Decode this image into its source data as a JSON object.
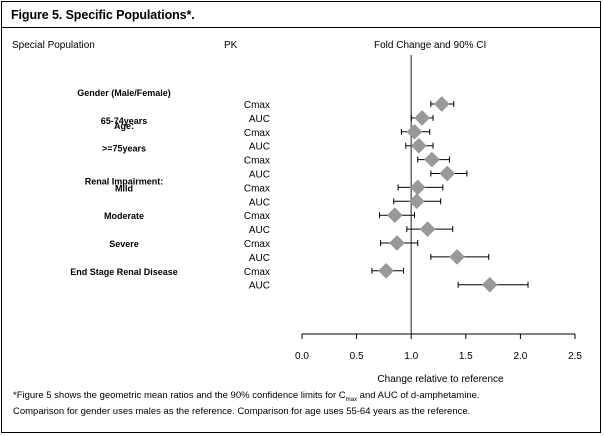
{
  "figure": {
    "title": "Figure 5. Specific Populations*.",
    "col_population": "Special Population",
    "col_pk": "PK",
    "col_plot": "Fold Change and 90% CI",
    "footnote_pre": "*Figure 5 shows the geometric mean ratios and the 90% confidence limits for C",
    "footnote_sub": "max",
    "footnote_post": " and AUC of d-amphetamine.",
    "footnote_line2": "Comparison for gender uses males as the reference. Comparison for age uses 55-64 years as the reference."
  },
  "colors": {
    "marker": "#999999",
    "line": "#000000",
    "reference": "#555555"
  },
  "chart_data": {
    "type": "forest",
    "xlabel": "Change relative to reference",
    "xlim": [
      0,
      2.5
    ],
    "xticks": [
      0.0,
      0.5,
      1.0,
      1.5,
      2.0,
      2.5
    ],
    "xtick_labels": [
      "0.0",
      "0.5",
      "1.0",
      "1.5",
      "2.0",
      "2.5"
    ],
    "reference_line": 1.0,
    "group_labels": [
      {
        "text": "Gender (Male/Female)",
        "row": 0,
        "dy": -12
      },
      {
        "text": "Age:",
        "row": 1.5,
        "dy": 0
      },
      {
        "text": "65-74years",
        "row": 2,
        "dy": -12
      },
      {
        "text": ">=75years",
        "row": 4,
        "dy": -12
      },
      {
        "text": "Renal Impairment:",
        "row": 5.5,
        "dy": 0
      },
      {
        "text": "Mild",
        "row": 6,
        "dy": 0
      },
      {
        "text": "Moderate",
        "row": 8,
        "dy": 0
      },
      {
        "text": "Severe",
        "row": 10,
        "dy": 0
      },
      {
        "text": "End Stage Renal Disease",
        "row": 12,
        "dy": 0
      }
    ],
    "rows": [
      {
        "pk": "Cmax",
        "estimate": 1.28,
        "lower": 1.18,
        "upper": 1.39
      },
      {
        "pk": "AUC",
        "estimate": 1.1,
        "lower": 1.0,
        "upper": 1.2
      },
      {
        "pk": "Cmax",
        "estimate": 1.03,
        "lower": 0.91,
        "upper": 1.17
      },
      {
        "pk": "AUC",
        "estimate": 1.07,
        "lower": 0.95,
        "upper": 1.2
      },
      {
        "pk": "Cmax",
        "estimate": 1.19,
        "lower": 1.06,
        "upper": 1.35
      },
      {
        "pk": "AUC",
        "estimate": 1.33,
        "lower": 1.18,
        "upper": 1.51
      },
      {
        "pk": "Cmax",
        "estimate": 1.06,
        "lower": 0.88,
        "upper": 1.29
      },
      {
        "pk": "AUC",
        "estimate": 1.05,
        "lower": 0.84,
        "upper": 1.27
      },
      {
        "pk": "Cmax",
        "estimate": 0.85,
        "lower": 0.71,
        "upper": 1.03
      },
      {
        "pk": "AUC",
        "estimate": 1.15,
        "lower": 0.96,
        "upper": 1.38
      },
      {
        "pk": "Cmax",
        "estimate": 0.87,
        "lower": 0.72,
        "upper": 1.06
      },
      {
        "pk": "AUC",
        "estimate": 1.42,
        "lower": 1.18,
        "upper": 1.71
      },
      {
        "pk": "Cmax",
        "estimate": 0.77,
        "lower": 0.64,
        "upper": 0.93
      },
      {
        "pk": "AUC",
        "estimate": 1.72,
        "lower": 1.43,
        "upper": 2.07
      }
    ]
  }
}
